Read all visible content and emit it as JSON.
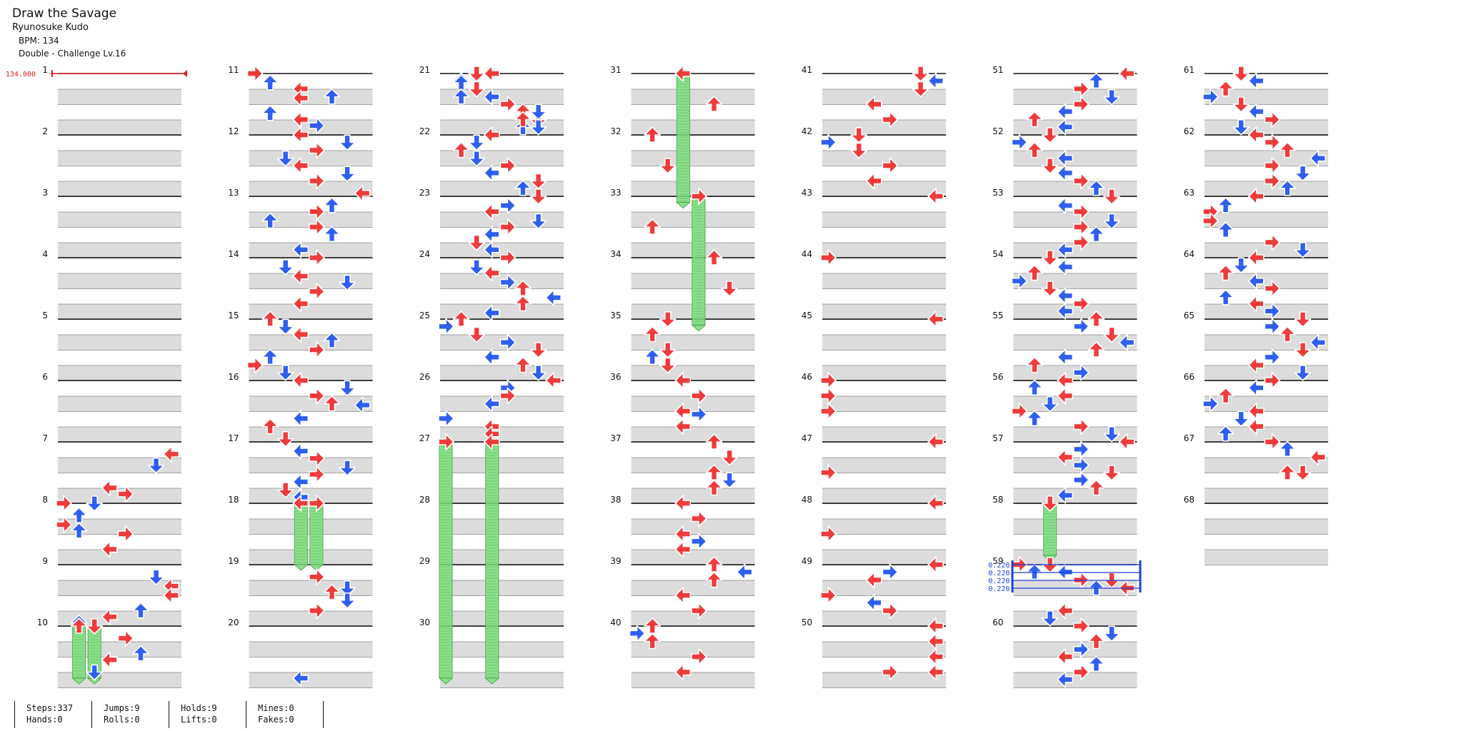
{
  "song": {
    "title": "Draw the Savage",
    "artist": "Ryunosuke Kudo",
    "bpm_text": "BPM: 134",
    "difficulty_text": "Double - Challenge Lv.16"
  },
  "colors": {
    "red": "#ef3b3b",
    "blue": "#2f5ff0",
    "hold": "#8be08b",
    "bpm_marker": "#e11d1d",
    "stop_marker": "#1f3fd8"
  },
  "measure_count": 68,
  "measures_per_column": 10,
  "bpm_change": {
    "measure": 1,
    "label": "134.000"
  },
  "stops": {
    "measure": 59,
    "labels": [
      "0.220",
      "0.220",
      "0.220",
      "0.220"
    ]
  },
  "notes": [
    [
      7,
      0.2,
      7,
      "r"
    ],
    [
      7,
      0.38,
      6,
      "b"
    ],
    [
      7,
      0.75,
      3,
      "r"
    ],
    [
      7,
      0.85,
      4,
      "r"
    ],
    [
      7,
      1.0,
      2,
      "b"
    ],
    [
      7,
      1.35,
      0,
      "r"
    ],
    [
      7,
      1.45,
      1,
      "b"
    ],
    [
      8,
      0.0,
      0,
      "r"
    ],
    [
      8,
      0.2,
      1,
      "b"
    ],
    [
      8,
      0.5,
      4,
      "r"
    ],
    [
      8,
      0.75,
      3,
      "r"
    ],
    [
      9,
      0.2,
      6,
      "b"
    ],
    [
      9,
      0.35,
      7,
      "r"
    ],
    [
      9,
      0.5,
      7,
      "r"
    ],
    [
      9,
      0.75,
      5,
      "b"
    ],
    [
      9,
      0.85,
      3,
      "r"
    ],
    [
      9,
      0.95,
      1,
      "b"
    ],
    [
      9,
      1.2,
      4,
      "r"
    ],
    [
      9,
      1.45,
      5,
      "b"
    ],
    [
      9,
      1.55,
      3,
      "r"
    ],
    [
      9,
      1.75,
      2,
      "b"
    ],
    [
      10,
      0.0,
      1,
      "r"
    ],
    [
      10,
      0.0,
      2,
      "r"
    ],
    [
      11,
      0.0,
      0,
      "r"
    ],
    [
      11,
      0.15,
      1,
      "b"
    ],
    [
      11,
      0.25,
      3,
      "r"
    ],
    [
      11,
      0.4,
      3,
      "r"
    ],
    [
      11,
      0.38,
      5,
      "b"
    ],
    [
      11,
      0.65,
      1,
      "b"
    ],
    [
      11,
      0.75,
      3,
      "r"
    ],
    [
      11,
      0.85,
      4,
      "b"
    ],
    [
      12,
      0.0,
      3,
      "r"
    ],
    [
      12,
      0.12,
      6,
      "b"
    ],
    [
      12,
      0.25,
      4,
      "r"
    ],
    [
      12,
      0.38,
      2,
      "b"
    ],
    [
      12,
      0.5,
      3,
      "r"
    ],
    [
      12,
      0.63,
      6,
      "b"
    ],
    [
      12,
      0.75,
      4,
      "r"
    ],
    [
      12,
      0.95,
      7,
      "r"
    ],
    [
      13,
      0.15,
      5,
      "b"
    ],
    [
      13,
      0.25,
      4,
      "r"
    ],
    [
      13,
      0.4,
      1,
      "b"
    ],
    [
      13,
      0.5,
      4,
      "r"
    ],
    [
      13,
      0.62,
      5,
      "b"
    ],
    [
      13,
      0.87,
      3,
      "b"
    ],
    [
      13,
      1.0,
      4,
      "r"
    ],
    [
      14,
      0.15,
      2,
      "b"
    ],
    [
      14,
      0.3,
      3,
      "r"
    ],
    [
      14,
      0.4,
      6,
      "b"
    ],
    [
      14,
      0.55,
      4,
      "r"
    ],
    [
      14,
      0.75,
      3,
      "r"
    ],
    [
      15,
      0.0,
      1,
      "r"
    ],
    [
      15,
      0.12,
      2,
      "b"
    ],
    [
      15,
      0.25,
      3,
      "r"
    ],
    [
      15,
      0.35,
      5,
      "b"
    ],
    [
      15,
      0.5,
      4,
      "r"
    ],
    [
      15,
      0.62,
      1,
      "b"
    ],
    [
      15,
      0.75,
      0,
      "r"
    ],
    [
      15,
      0.87,
      2,
      "b"
    ],
    [
      16,
      0.0,
      3,
      "r"
    ],
    [
      16,
      0.12,
      6,
      "b"
    ],
    [
      16,
      0.25,
      4,
      "r"
    ],
    [
      16,
      0.38,
      5,
      "r"
    ],
    [
      16,
      0.4,
      7,
      "b"
    ],
    [
      16,
      0.62,
      3,
      "b"
    ],
    [
      16,
      0.75,
      1,
      "r"
    ],
    [
      16,
      0.95,
      2,
      "r"
    ],
    [
      17,
      0.15,
      3,
      "b"
    ],
    [
      17,
      0.27,
      4,
      "r"
    ],
    [
      17,
      0.42,
      6,
      "b"
    ],
    [
      17,
      0.53,
      4,
      "r"
    ],
    [
      17,
      0.65,
      3,
      "b"
    ],
    [
      17,
      0.78,
      2,
      "r"
    ],
    [
      17,
      0.9,
      3,
      "b"
    ],
    [
      18,
      0.0,
      3,
      "r"
    ],
    [
      18,
      0.0,
      4,
      "r"
    ],
    [
      18,
      1.2,
      4,
      "r"
    ],
    [
      18,
      1.38,
      6,
      "b"
    ],
    [
      18,
      1.45,
      5,
      "r"
    ],
    [
      18,
      1.58,
      6,
      "b"
    ],
    [
      18,
      1.75,
      4,
      "r"
    ],
    [
      20,
      0.85,
      3,
      "b"
    ],
    [
      20,
      1.0,
      2,
      "r"
    ],
    [
      20,
      1.12,
      1,
      "b"
    ],
    [
      20,
      1.25,
      2,
      "r"
    ],
    [
      20,
      1.38,
      3,
      "b"
    ],
    [
      20,
      1.5,
      4,
      "r"
    ],
    [
      20,
      1.62,
      5,
      "r"
    ],
    [
      20,
      1.75,
      6,
      "r"
    ],
    [
      20,
      1.88,
      5,
      "b"
    ],
    [
      21,
      0.0,
      3,
      "r"
    ],
    [
      21,
      0.15,
      1,
      "b"
    ],
    [
      21,
      0.25,
      2,
      "r"
    ],
    [
      21,
      0.38,
      1,
      "b"
    ],
    [
      21,
      0.5,
      4,
      "r"
    ],
    [
      21,
      0.62,
      6,
      "b"
    ],
    [
      21,
      0.75,
      5,
      "r"
    ],
    [
      21,
      0.87,
      6,
      "b"
    ],
    [
      22,
      0.0,
      3,
      "r"
    ],
    [
      22,
      0.12,
      2,
      "b"
    ],
    [
      22,
      0.25,
      1,
      "r"
    ],
    [
      22,
      0.38,
      2,
      "b"
    ],
    [
      22,
      0.5,
      4,
      "r"
    ],
    [
      22,
      0.62,
      3,
      "b"
    ],
    [
      22,
      0.75,
      6,
      "r"
    ],
    [
      22,
      0.87,
      5,
      "b"
    ],
    [
      23,
      0.0,
      6,
      "r"
    ],
    [
      23,
      0.15,
      4,
      "b"
    ],
    [
      23,
      0.25,
      3,
      "r"
    ],
    [
      23,
      0.4,
      6,
      "b"
    ],
    [
      23,
      0.5,
      4,
      "r"
    ],
    [
      23,
      0.62,
      3,
      "b"
    ],
    [
      23,
      0.75,
      2,
      "r"
    ],
    [
      23,
      0.87,
      3,
      "b"
    ],
    [
      24,
      0.0,
      4,
      "r"
    ],
    [
      24,
      0.15,
      2,
      "b"
    ],
    [
      24,
      0.25,
      3,
      "r"
    ],
    [
      24,
      0.4,
      4,
      "b"
    ],
    [
      24,
      0.5,
      5,
      "r"
    ],
    [
      24,
      0.65,
      7,
      "b"
    ],
    [
      24,
      0.75,
      5,
      "r"
    ],
    [
      24,
      0.9,
      3,
      "b"
    ],
    [
      25,
      0.0,
      1,
      "r"
    ],
    [
      25,
      0.12,
      0,
      "b"
    ],
    [
      25,
      0.25,
      2,
      "r"
    ],
    [
      25,
      0.38,
      4,
      "b"
    ],
    [
      25,
      0.5,
      6,
      "r"
    ],
    [
      25,
      0.62,
      3,
      "b"
    ],
    [
      25,
      0.75,
      5,
      "r"
    ],
    [
      25,
      0.87,
      6,
      "b"
    ],
    [
      26,
      0.0,
      7,
      "r"
    ],
    [
      26,
      0.12,
      4,
      "b"
    ],
    [
      26,
      0.25,
      4,
      "r"
    ],
    [
      26,
      0.38,
      3,
      "b"
    ],
    [
      26,
      0.62,
      0,
      "b"
    ],
    [
      26,
      0.75,
      3,
      "r"
    ],
    [
      26,
      0.87,
      3,
      "r"
    ],
    [
      27,
      0.0,
      0,
      "r"
    ],
    [
      27,
      0.0,
      3,
      "r"
    ],
    [
      31,
      0.0,
      3,
      "r"
    ],
    [
      31,
      0.5,
      5,
      "r"
    ],
    [
      32,
      0.0,
      1,
      "r"
    ],
    [
      32,
      0.5,
      2,
      "r"
    ],
    [
      33,
      0.0,
      4,
      "r"
    ],
    [
      33,
      0.5,
      1,
      "r"
    ],
    [
      34,
      0.0,
      5,
      "r"
    ],
    [
      34,
      0.5,
      6,
      "r"
    ],
    [
      35,
      0.0,
      2,
      "r"
    ],
    [
      35,
      0.25,
      1,
      "r"
    ],
    [
      35,
      0.5,
      2,
      "r"
    ],
    [
      35,
      0.62,
      1,
      "b"
    ],
    [
      35,
      0.75,
      2,
      "r"
    ],
    [
      35,
      1.0,
      3,
      "r"
    ],
    [
      35,
      1.25,
      4,
      "r"
    ],
    [
      35,
      1.5,
      3,
      "r"
    ],
    [
      35,
      1.55,
      4,
      "b"
    ],
    [
      35,
      1.75,
      3,
      "r"
    ],
    [
      37,
      0.0,
      5,
      "r"
    ],
    [
      37,
      0.25,
      6,
      "r"
    ],
    [
      37,
      0.5,
      5,
      "r"
    ],
    [
      37,
      0.62,
      6,
      "b"
    ],
    [
      37,
      0.75,
      5,
      "r"
    ],
    [
      38,
      0.0,
      3,
      "r"
    ],
    [
      38,
      0.25,
      4,
      "r"
    ],
    [
      38,
      0.5,
      3,
      "r"
    ],
    [
      38,
      0.62,
      4,
      "b"
    ],
    [
      38,
      0.75,
      3,
      "r"
    ],
    [
      39,
      0.0,
      5,
      "r"
    ],
    [
      39,
      0.12,
      7,
      "b"
    ],
    [
      39,
      0.25,
      5,
      "r"
    ],
    [
      39,
      0.5,
      3,
      "r"
    ],
    [
      39,
      0.75,
      4,
      "r"
    ],
    [
      40,
      0.0,
      1,
      "r"
    ],
    [
      40,
      0.12,
      0,
      "b"
    ],
    [
      40,
      0.25,
      1,
      "r"
    ],
    [
      40,
      0.5,
      4,
      "r"
    ],
    [
      40,
      0.75,
      3,
      "r"
    ],
    [
      41,
      0.0,
      6,
      "r"
    ],
    [
      41,
      0.12,
      7,
      "b"
    ],
    [
      41,
      0.25,
      6,
      "r"
    ],
    [
      41,
      0.5,
      3,
      "r"
    ],
    [
      41,
      0.75,
      4,
      "r"
    ],
    [
      42,
      0.0,
      2,
      "r"
    ],
    [
      42,
      0.12,
      0,
      "b"
    ],
    [
      42,
      0.25,
      2,
      "r"
    ],
    [
      42,
      0.5,
      4,
      "r"
    ],
    [
      42,
      0.75,
      3,
      "r"
    ],
    [
      43,
      0.0,
      7,
      "r"
    ],
    [
      44,
      0.0,
      0,
      "r"
    ],
    [
      45,
      0.0,
      7,
      "r"
    ],
    [
      46,
      0.0,
      0,
      "r"
    ],
    [
      46,
      0.25,
      0,
      "r"
    ],
    [
      46,
      0.5,
      0,
      "r"
    ],
    [
      47,
      0.0,
      7,
      "r"
    ],
    [
      47,
      0.5,
      0,
      "r"
    ],
    [
      48,
      0.0,
      7,
      "r"
    ],
    [
      48,
      0.5,
      0,
      "r"
    ],
    [
      49,
      0.0,
      7,
      "r"
    ],
    [
      49,
      0.12,
      4,
      "b"
    ],
    [
      49,
      0.25,
      3,
      "r"
    ],
    [
      49,
      0.5,
      0,
      "r"
    ],
    [
      49,
      0.62,
      3,
      "b"
    ],
    [
      49,
      0.75,
      4,
      "r"
    ],
    [
      50,
      0.0,
      7,
      "r"
    ],
    [
      50,
      0.25,
      7,
      "r"
    ],
    [
      50,
      0.5,
      7,
      "r"
    ],
    [
      50,
      0.75,
      4,
      "r"
    ],
    [
      50,
      0.75,
      7,
      "r"
    ],
    [
      51,
      0.0,
      7,
      "r"
    ],
    [
      51,
      0.12,
      5,
      "b"
    ],
    [
      51,
      0.25,
      4,
      "r"
    ],
    [
      51,
      0.38,
      6,
      "b"
    ],
    [
      51,
      0.5,
      4,
      "r"
    ],
    [
      51,
      0.62,
      3,
      "b"
    ],
    [
      51,
      0.75,
      1,
      "r"
    ],
    [
      51,
      0.87,
      3,
      "b"
    ],
    [
      52,
      0.0,
      2,
      "r"
    ],
    [
      52,
      0.12,
      0,
      "b"
    ],
    [
      52,
      0.25,
      1,
      "r"
    ],
    [
      52,
      0.38,
      3,
      "b"
    ],
    [
      52,
      0.5,
      2,
      "r"
    ],
    [
      52,
      0.62,
      3,
      "b"
    ],
    [
      52,
      0.75,
      4,
      "r"
    ],
    [
      52,
      0.87,
      5,
      "b"
    ],
    [
      53,
      0.0,
      6,
      "r"
    ],
    [
      53,
      0.15,
      3,
      "b"
    ],
    [
      53,
      0.25,
      4,
      "r"
    ],
    [
      53,
      0.4,
      6,
      "b"
    ],
    [
      53,
      0.5,
      4,
      "r"
    ],
    [
      53,
      0.62,
      5,
      "b"
    ],
    [
      53,
      0.75,
      4,
      "r"
    ],
    [
      53,
      0.87,
      3,
      "b"
    ],
    [
      54,
      0.0,
      2,
      "r"
    ],
    [
      54,
      0.15,
      3,
      "b"
    ],
    [
      54,
      0.25,
      1,
      "r"
    ],
    [
      54,
      0.38,
      0,
      "b"
    ],
    [
      54,
      0.5,
      2,
      "r"
    ],
    [
      54,
      0.62,
      3,
      "b"
    ],
    [
      54,
      0.75,
      4,
      "r"
    ],
    [
      54,
      0.87,
      3,
      "b"
    ],
    [
      55,
      0.0,
      5,
      "r"
    ],
    [
      55,
      0.12,
      4,
      "b"
    ],
    [
      55,
      0.25,
      6,
      "r"
    ],
    [
      55,
      0.38,
      7,
      "b"
    ],
    [
      55,
      0.5,
      5,
      "r"
    ],
    [
      55,
      0.62,
      3,
      "b"
    ],
    [
      55,
      0.75,
      1,
      "r"
    ],
    [
      55,
      0.87,
      4,
      "b"
    ],
    [
      56,
      0.0,
      3,
      "r"
    ],
    [
      56,
      0.12,
      1,
      "b"
    ],
    [
      56,
      0.25,
      3,
      "r"
    ],
    [
      56,
      0.38,
      2,
      "b"
    ],
    [
      56,
      0.5,
      0,
      "r"
    ],
    [
      56,
      0.62,
      1,
      "b"
    ],
    [
      56,
      0.75,
      4,
      "r"
    ],
    [
      56,
      0.87,
      6,
      "b"
    ],
    [
      57,
      0.0,
      7,
      "r"
    ],
    [
      57,
      0.12,
      4,
      "b"
    ],
    [
      57,
      0.25,
      3,
      "r"
    ],
    [
      57,
      0.38,
      4,
      "b"
    ],
    [
      57,
      0.5,
      6,
      "r"
    ],
    [
      57,
      0.62,
      4,
      "b"
    ],
    [
      57,
      0.75,
      5,
      "r"
    ],
    [
      57,
      0.87,
      3,
      "b"
    ],
    [
      58,
      0.0,
      2,
      "r"
    ],
    [
      59,
      0.0,
      0,
      "r"
    ],
    [
      59,
      0.12,
      1,
      "b"
    ],
    [
      59,
      0.0,
      2,
      "r"
    ],
    [
      59,
      0.12,
      3,
      "b"
    ],
    [
      59,
      0.25,
      4,
      "r"
    ],
    [
      59,
      0.38,
      5,
      "b"
    ],
    [
      59,
      0.25,
      6,
      "r"
    ],
    [
      59,
      0.38,
      7,
      "r"
    ],
    [
      59,
      0.75,
      3,
      "r"
    ],
    [
      59,
      0.87,
      2,
      "b"
    ],
    [
      60,
      0.0,
      4,
      "r"
    ],
    [
      60,
      0.12,
      6,
      "b"
    ],
    [
      60,
      0.25,
      5,
      "r"
    ],
    [
      60,
      0.38,
      4,
      "b"
    ],
    [
      60,
      0.5,
      3,
      "r"
    ],
    [
      60,
      0.62,
      5,
      "b"
    ],
    [
      60,
      0.75,
      4,
      "r"
    ],
    [
      60,
      0.87,
      3,
      "b"
    ],
    [
      61,
      0.0,
      2,
      "r"
    ],
    [
      61,
      0.12,
      3,
      "b"
    ],
    [
      61,
      0.25,
      1,
      "r"
    ],
    [
      61,
      0.38,
      0,
      "b"
    ],
    [
      61,
      0.5,
      2,
      "r"
    ],
    [
      61,
      0.62,
      3,
      "b"
    ],
    [
      61,
      0.75,
      4,
      "r"
    ],
    [
      61,
      0.87,
      2,
      "b"
    ],
    [
      62,
      0.0,
      3,
      "r"
    ],
    [
      62,
      0.12,
      4,
      "r"
    ],
    [
      62,
      0.25,
      5,
      "r"
    ],
    [
      62,
      0.38,
      7,
      "b"
    ],
    [
      62,
      0.5,
      4,
      "r"
    ],
    [
      62,
      0.62,
      6,
      "b"
    ],
    [
      62,
      0.75,
      4,
      "r"
    ],
    [
      62,
      0.87,
      5,
      "b"
    ],
    [
      63,
      0.0,
      3,
      "r"
    ],
    [
      63,
      0.15,
      1,
      "b"
    ],
    [
      63,
      0.25,
      0,
      "r"
    ],
    [
      63,
      0.4,
      0,
      "r"
    ],
    [
      63,
      0.55,
      1,
      "b"
    ],
    [
      63,
      0.75,
      4,
      "r"
    ],
    [
      63,
      0.87,
      6,
      "b"
    ],
    [
      64,
      0.0,
      3,
      "r"
    ],
    [
      64,
      0.12,
      2,
      "b"
    ],
    [
      64,
      0.25,
      1,
      "r"
    ],
    [
      64,
      0.38,
      3,
      "b"
    ],
    [
      64,
      0.5,
      4,
      "r"
    ],
    [
      64,
      0.65,
      1,
      "b"
    ],
    [
      64,
      0.75,
      3,
      "r"
    ],
    [
      64,
      0.87,
      4,
      "b"
    ],
    [
      65,
      0.0,
      6,
      "r"
    ],
    [
      65,
      0.12,
      4,
      "b"
    ],
    [
      65,
      0.25,
      5,
      "r"
    ],
    [
      65,
      0.38,
      7,
      "b"
    ],
    [
      65,
      0.5,
      6,
      "r"
    ],
    [
      65,
      0.62,
      4,
      "b"
    ],
    [
      65,
      0.75,
      3,
      "r"
    ],
    [
      65,
      0.87,
      6,
      "b"
    ],
    [
      66,
      0.0,
      4,
      "r"
    ],
    [
      66,
      0.12,
      3,
      "b"
    ],
    [
      66,
      0.25,
      1,
      "r"
    ],
    [
      66,
      0.38,
      0,
      "b"
    ],
    [
      66,
      0.5,
      3,
      "r"
    ],
    [
      66,
      0.62,
      2,
      "b"
    ],
    [
      66,
      0.75,
      3,
      "r"
    ],
    [
      66,
      0.87,
      1,
      "b"
    ],
    [
      67,
      0.0,
      4,
      "r"
    ],
    [
      67,
      0.12,
      5,
      "b"
    ],
    [
      67,
      0.25,
      7,
      "r"
    ],
    [
      67,
      0.5,
      5,
      "r"
    ],
    [
      67,
      0.5,
      6,
      "r"
    ]
  ],
  "holds": [
    [
      10,
      0.0,
      1,
      10,
      0.85
    ],
    [
      10,
      0.0,
      2,
      10,
      0.85
    ],
    [
      18,
      0.0,
      3,
      19,
      0.0
    ],
    [
      18,
      0.0,
      4,
      19,
      0.0
    ],
    [
      27,
      0.0,
      0,
      30,
      0.85
    ],
    [
      27,
      0.0,
      3,
      30,
      0.85
    ],
    [
      31,
      0.0,
      3,
      33,
      0.1
    ],
    [
      33,
      0.0,
      4,
      35,
      0.1
    ],
    [
      58,
      0.0,
      2,
      58,
      0.85
    ]
  ],
  "stats": [
    {
      "top": "Steps:337",
      "bottom": "Hands:0"
    },
    {
      "top": "Jumps:9",
      "bottom": "Rolls:0"
    },
    {
      "top": "Holds:9",
      "bottom": "Lifts:0"
    },
    {
      "top": "Mines:0",
      "bottom": "Fakes:0"
    }
  ]
}
